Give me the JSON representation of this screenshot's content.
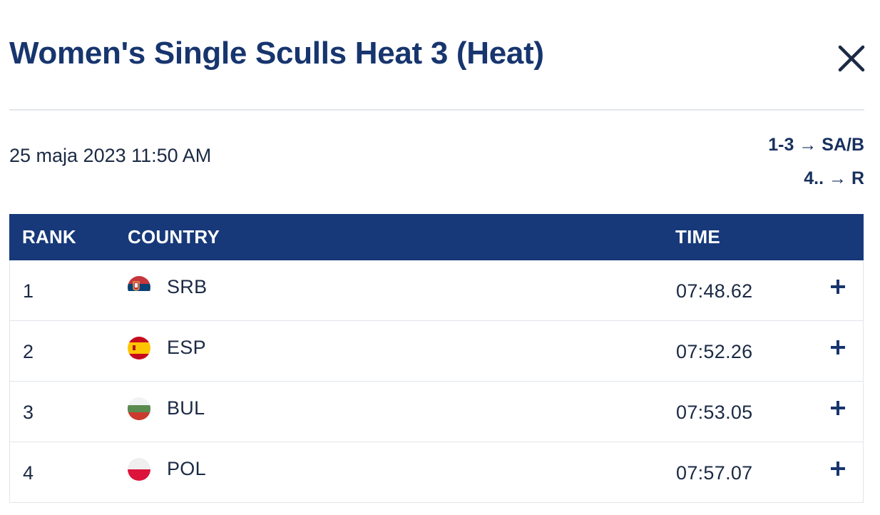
{
  "modal": {
    "title": "Women's Single Sculls Heat 3 (Heat)",
    "close_icon": "close-icon"
  },
  "race": {
    "date": "25 maja 2023 11:50 AM",
    "progression": [
      {
        "places": "1-3",
        "arrow": "→",
        "target": "SA/B"
      },
      {
        "places": "4..",
        "arrow": "→",
        "target": "R"
      }
    ]
  },
  "table": {
    "headers": {
      "rank": "RANK",
      "country": "COUNTRY",
      "time": "TIME"
    },
    "rows": [
      {
        "rank": "1",
        "country": "SRB",
        "flag": "serbia-flag-icon",
        "time": "07:48.62"
      },
      {
        "rank": "2",
        "country": "ESP",
        "flag": "spain-flag-icon",
        "time": "07:52.26"
      },
      {
        "rank": "3",
        "country": "BUL",
        "flag": "bulgaria-flag-icon",
        "time": "07:53.05"
      },
      {
        "rank": "4",
        "country": "POL",
        "flag": "poland-flag-icon",
        "time": "07:57.07"
      }
    ],
    "expand_icon": "plus-icon"
  },
  "colors": {
    "header_bg": "#17397a",
    "title": "#17356e",
    "text": "#1b2a44",
    "divider": "#e3e6ea"
  }
}
